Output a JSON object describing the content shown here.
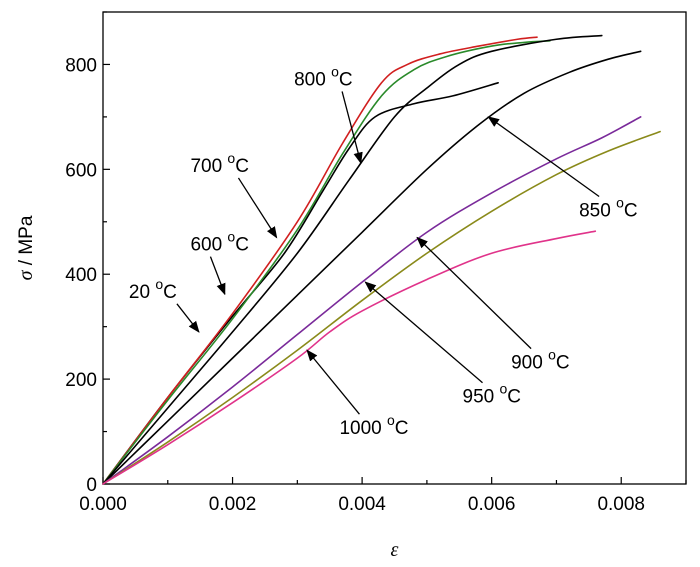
{
  "chart_data": {
    "type": "line",
    "xlabel": "ε",
    "ylabel": "σ",
    "ylabel_unit": " / MPa",
    "xlim": [
      0,
      0.009
    ],
    "ylim": [
      0,
      900
    ],
    "xticks": [
      0,
      0.002,
      0.004,
      0.006,
      0.008
    ],
    "xtick_labels": [
      "0.000",
      "0.002",
      "0.004",
      "0.006",
      "0.008"
    ],
    "yticks": [
      0,
      200,
      400,
      600,
      800
    ],
    "ytick_labels": [
      "0",
      "200",
      "400",
      "600",
      "800"
    ],
    "grid": false,
    "legend": "none",
    "series": [
      {
        "name": "20 °C",
        "color": "#000000",
        "points": [
          [
            0,
            0
          ],
          [
            0.001,
            165
          ],
          [
            0.002,
            320
          ],
          [
            0.0028,
            440
          ],
          [
            0.0034,
            560
          ],
          [
            0.0038,
            640
          ],
          [
            0.0042,
            700
          ],
          [
            0.0048,
            725
          ],
          [
            0.0054,
            740
          ],
          [
            0.0061,
            765
          ]
        ]
      },
      {
        "name": "600 °C",
        "color": "#d11f1f",
        "points": [
          [
            0,
            0
          ],
          [
            0.001,
            165
          ],
          [
            0.002,
            325
          ],
          [
            0.003,
            500
          ],
          [
            0.0037,
            650
          ],
          [
            0.0043,
            765
          ],
          [
            0.0047,
            800
          ],
          [
            0.0052,
            820
          ],
          [
            0.0058,
            835
          ],
          [
            0.0064,
            848
          ],
          [
            0.0067,
            852
          ]
        ]
      },
      {
        "name": "700 °C",
        "color": "#2a8a2a",
        "points": [
          [
            0,
            0
          ],
          [
            0.001,
            160
          ],
          [
            0.002,
            315
          ],
          [
            0.003,
            485
          ],
          [
            0.0037,
            630
          ],
          [
            0.0043,
            740
          ],
          [
            0.0048,
            790
          ],
          [
            0.0053,
            815
          ],
          [
            0.006,
            835
          ],
          [
            0.0065,
            842
          ],
          [
            0.0069,
            845
          ]
        ]
      },
      {
        "name": "800 °C",
        "color": "#000000",
        "points": [
          [
            0,
            0
          ],
          [
            0.001,
            145
          ],
          [
            0.002,
            290
          ],
          [
            0.003,
            440
          ],
          [
            0.0038,
            580
          ],
          [
            0.0045,
            700
          ],
          [
            0.005,
            755
          ],
          [
            0.0055,
            800
          ],
          [
            0.006,
            825
          ],
          [
            0.007,
            848
          ],
          [
            0.0077,
            855
          ]
        ]
      },
      {
        "name": "850 °C",
        "color": "#000000",
        "points": [
          [
            0,
            0
          ],
          [
            0.001,
            120
          ],
          [
            0.002,
            240
          ],
          [
            0.003,
            360
          ],
          [
            0.004,
            480
          ],
          [
            0.005,
            600
          ],
          [
            0.0058,
            685
          ],
          [
            0.0065,
            745
          ],
          [
            0.0072,
            785
          ],
          [
            0.0078,
            810
          ],
          [
            0.0083,
            825
          ]
        ]
      },
      {
        "name": "900 °C",
        "color": "#7a2a9a",
        "points": [
          [
            0,
            0
          ],
          [
            0.001,
            90
          ],
          [
            0.002,
            185
          ],
          [
            0.003,
            285
          ],
          [
            0.004,
            385
          ],
          [
            0.005,
            480
          ],
          [
            0.006,
            555
          ],
          [
            0.007,
            620
          ],
          [
            0.0077,
            660
          ],
          [
            0.0083,
            700
          ]
        ]
      },
      {
        "name": "950 °C",
        "color": "#8a8a1a",
        "points": [
          [
            0,
            0
          ],
          [
            0.001,
            80
          ],
          [
            0.002,
            165
          ],
          [
            0.003,
            255
          ],
          [
            0.004,
            350
          ],
          [
            0.005,
            440
          ],
          [
            0.006,
            520
          ],
          [
            0.007,
            590
          ],
          [
            0.0078,
            635
          ],
          [
            0.0086,
            672
          ]
        ]
      },
      {
        "name": "1000 °C",
        "color": "#e0338a",
        "points": [
          [
            0,
            0
          ],
          [
            0.001,
            75
          ],
          [
            0.002,
            155
          ],
          [
            0.003,
            240
          ],
          [
            0.0035,
            290
          ],
          [
            0.004,
            330
          ],
          [
            0.005,
            390
          ],
          [
            0.006,
            440
          ],
          [
            0.007,
            468
          ],
          [
            0.0076,
            482
          ]
        ]
      }
    ],
    "annotations": [
      {
        "label": "800 ",
        "sup": "o",
        "unit": "C",
        "tip": [
          0.00398,
          612
        ],
        "text": [
          0.00295,
          760
        ]
      },
      {
        "label": "700 ",
        "sup": "o",
        "unit": "C",
        "tip": [
          0.00268,
          470
        ],
        "text": [
          0.00135,
          595
        ]
      },
      {
        "label": "600 ",
        "sup": "o",
        "unit": "C",
        "tip": [
          0.00188,
          362
        ],
        "text": [
          0.00135,
          445
        ]
      },
      {
        "label": "20 ",
        "sup": "o",
        "unit": "C",
        "tip": [
          0.00148,
          290
        ],
        "text": [
          0.0004,
          355
        ]
      },
      {
        "label": "850 ",
        "sup": "o",
        "unit": "C",
        "tip": [
          0.00595,
          700
        ],
        "text": [
          0.00735,
          510
        ]
      },
      {
        "label": "900 ",
        "sup": "o",
        "unit": "C",
        "tip": [
          0.00485,
          470
        ],
        "text": [
          0.0063,
          220
        ]
      },
      {
        "label": "950 ",
        "sup": "o",
        "unit": "C",
        "tip": [
          0.00405,
          385
        ],
        "text": [
          0.00555,
          155
        ]
      },
      {
        "label": "1000 ",
        "sup": "o",
        "unit": "C",
        "tip": [
          0.00315,
          255
        ],
        "text": [
          0.00365,
          95
        ]
      }
    ]
  }
}
